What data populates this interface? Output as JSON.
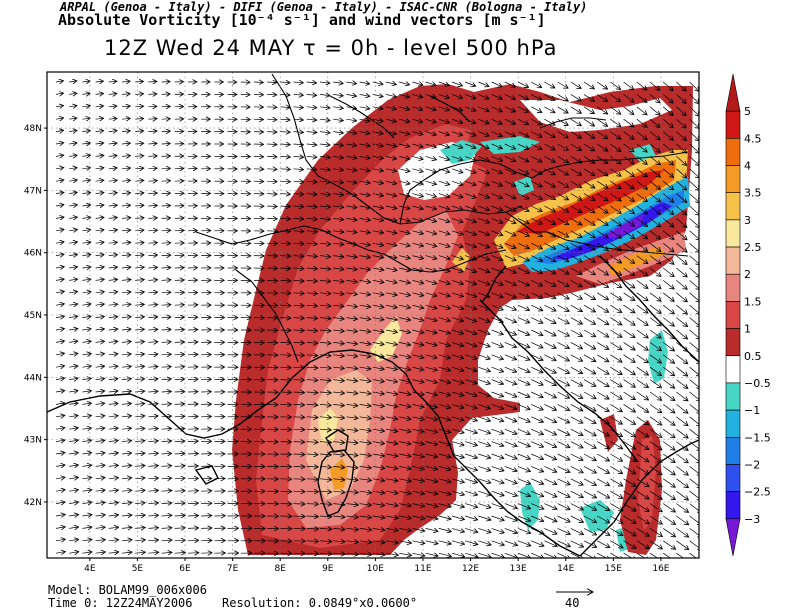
{
  "header": {
    "institutions": "ARPAL (Genoa - Italy)  -  DIFI (Genoa - Italy)  -  ISAC-CNR (Bologna - Italy)",
    "variable": "Absolute Vorticity [10⁻⁴ s⁻¹] and wind vectors [m s⁻¹]",
    "time_level": "12Z Wed 24 MAY  τ = 0h  -  level 500 hPa"
  },
  "axes": {
    "lon_labels": [
      "4E",
      "5E",
      "6E",
      "7E",
      "8E",
      "9E",
      "10E",
      "11E",
      "12E",
      "13E",
      "14E",
      "15E",
      "16E"
    ],
    "lat_labels": [
      "42N",
      "43N",
      "44N",
      "45N",
      "46N",
      "47N",
      "48N"
    ],
    "lon_range": [
      3.1,
      16.8
    ],
    "lat_range": [
      41.1,
      48.9
    ]
  },
  "colorbar": {
    "labels": [
      "5",
      "4.5",
      "4",
      "3.5",
      "3",
      "2.5",
      "2",
      "1.5",
      "1",
      "0.5",
      "−0.5",
      "−1",
      "−1.5",
      "−2",
      "−2.5",
      "−3"
    ],
    "colors": [
      "#b51a1a",
      "#d11616",
      "#ee6e0e",
      "#f49a27",
      "#f7c24a",
      "#fbe89f",
      "#f3b89a",
      "#e8857f",
      "#d84646",
      "#ba2b2b",
      "#ffffff",
      "#47d6c6",
      "#22b2df",
      "#1f7fe6",
      "#2f4fef",
      "#3417ec",
      "#7718d6"
    ]
  },
  "footer": {
    "model": "Model: BOLAM99_006x006",
    "time": "Time 0: 12Z24MAY2006",
    "resolution": "Resolution: 0.0849°x0.0600°",
    "ref_vector": "40"
  }
}
